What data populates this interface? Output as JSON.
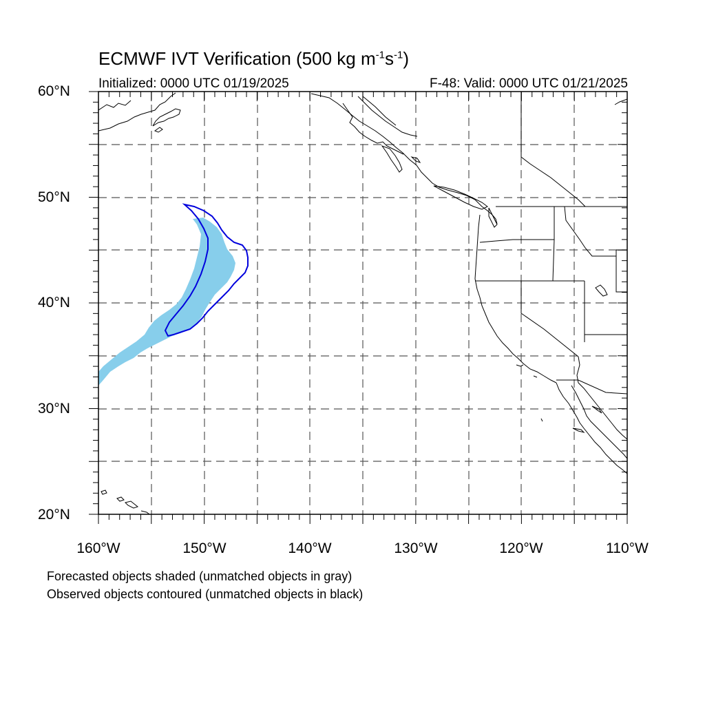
{
  "header": {
    "title_prefix": "ECMWF IVT Verification (500 kg m",
    "title_exp1": "-1",
    "title_mid": "s",
    "title_exp2": "-1",
    "title_suffix": ")",
    "initialized": "Initialized: 0000 UTC 01/19/2025",
    "valid": "F-48: Valid: 0000 UTC 01/21/2025"
  },
  "map": {
    "projection": "cylindrical equidistant",
    "lon_range": [
      -160,
      -110
    ],
    "lat_range": [
      20,
      60
    ],
    "grid": "dashed every 5 degrees",
    "lat_labels": [
      "60°N",
      "50°N",
      "40°N",
      "30°N",
      "20°N"
    ],
    "lon_labels": [
      "160°W",
      "150°W",
      "140°W",
      "130°W",
      "120°W",
      "110°W"
    ],
    "colors": {
      "forecast_fill": "#87ceeb",
      "observed_contour": "#0000dd",
      "coastline": "#000000",
      "grid": "#555555"
    }
  },
  "captions": {
    "line1": "Forecasted objects shaded (unmatched objects in gray)",
    "line2": "Observed objects contoured (unmatched objects in black)"
  }
}
